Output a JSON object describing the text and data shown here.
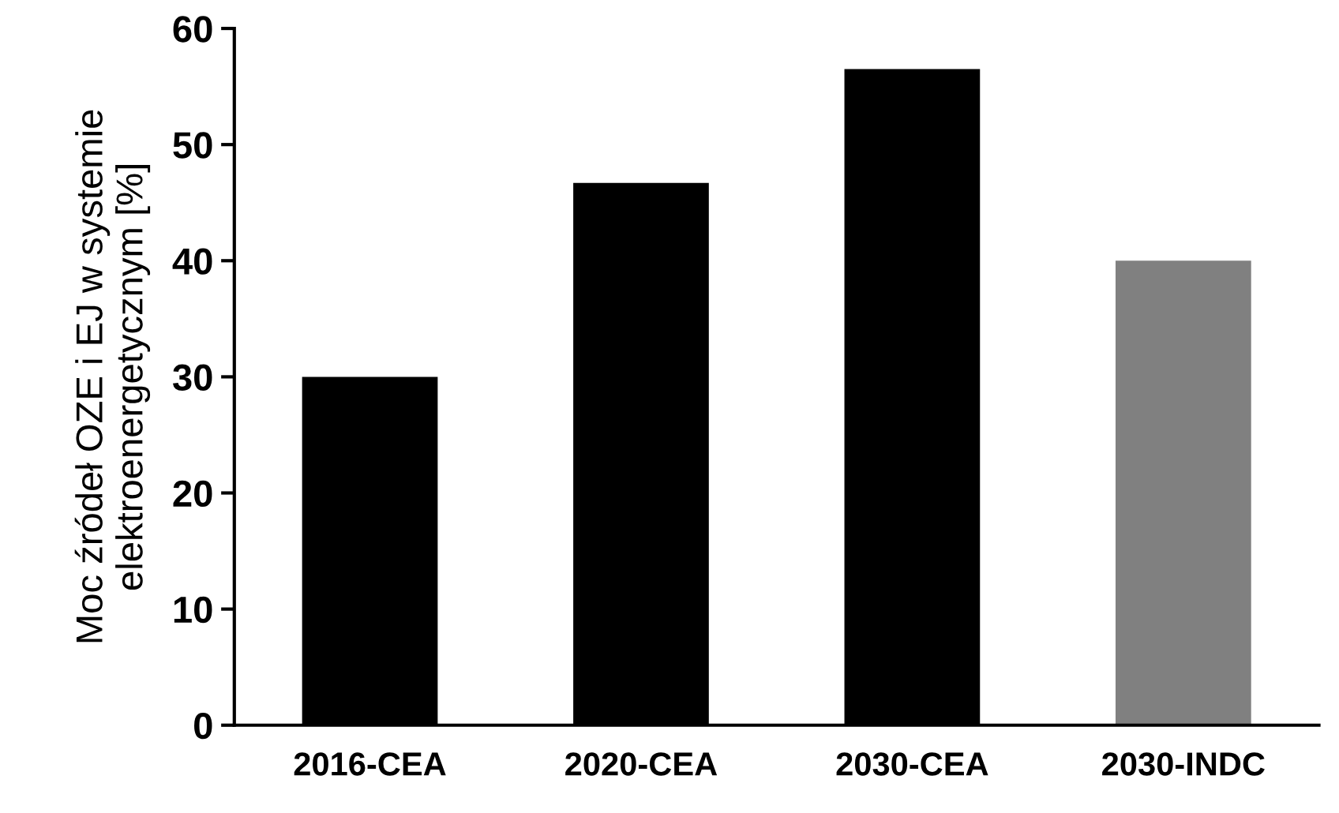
{
  "chart_data": {
    "type": "bar",
    "ylabel": "Moc źródeł OZE i EJ w systemie\nelektroenergetycznym [%]",
    "categories": [
      "2016-CEA",
      "2020-CEA",
      "2030-CEA",
      "2030-INDC"
    ],
    "values": [
      30,
      46.7,
      56.5,
      40
    ],
    "colors": [
      "#000000",
      "#000000",
      "#000000",
      "#808080"
    ],
    "ylim": [
      0,
      60
    ],
    "yticks": [
      0,
      10,
      20,
      30,
      40,
      50,
      60
    ],
    "grid": false,
    "legend": false
  }
}
